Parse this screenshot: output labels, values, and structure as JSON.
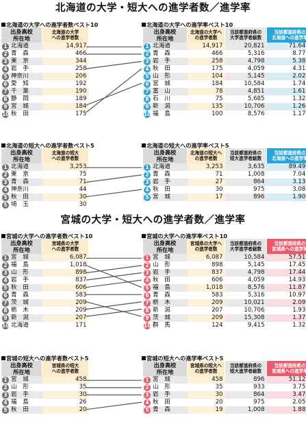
{
  "title1": "北海道の大学・短大への進学者数／進学率",
  "title2": "宮城の大学・短大への進学者数／進学率",
  "headers": {
    "src": "出身高校\n所在地",
    "hk_univ_cnt": "北海道の大学\nへの進学者数",
    "hk_jc_cnt": "北海道の短大\nへの進学者数",
    "hk_univ_cnt2": "北海道の大学へ\nの進学者数",
    "hk_jc_cnt2": "北海道の短大へ\nの進学者数",
    "univ_total": "当該都道府県の\n大学進学者総数",
    "jc_total": "当該都道府県の\n短大進学者総数",
    "hk_rate": "当該都道府県の\n北海道への進学率",
    "mg_univ_cnt": "宮城県の大学\nへの進学者数",
    "mg_jc_cnt": "宮城県の短大\nへの進学者数",
    "mg_univ_cnt2": "宮城県の大学へ\nの進学者数",
    "mg_jc_cnt2": "宮城県の短大へ\nの進学者数",
    "mg_rate": "当該都道府県の\n宮城県への進学率"
  },
  "hk_univ_count": {
    "label": "北海道の大学への進学者数ベスト10",
    "rows": [
      {
        "r": "1",
        "p": "北海道",
        "v": "14,917"
      },
      {
        "r": "2",
        "p": "青　森",
        "v": "466"
      },
      {
        "r": "3",
        "p": "東　京",
        "v": "344"
      },
      {
        "r": "4",
        "p": "岩　手",
        "v": "258"
      },
      {
        "r": "5",
        "p": "神奈川",
        "v": "206"
      },
      {
        "r": "6",
        "p": "愛　知",
        "v": "192"
      },
      {
        "r": "7",
        "p": "千　葉",
        "v": "190"
      },
      {
        "r": "8",
        "p": "静　岡",
        "v": "189"
      },
      {
        "r": "9",
        "p": "宮　城",
        "v": "184"
      },
      {
        "r": "10",
        "p": "秋　田",
        "v": "175"
      }
    ]
  },
  "hk_univ_rate": {
    "label": "北海道の大学への進学率ベスト10",
    "rows": [
      {
        "r": "1",
        "p": "北海道",
        "a": "14,917",
        "b": "20,821",
        "c": "71.64%"
      },
      {
        "r": "2",
        "p": "青　森",
        "a": "466",
        "b": "5,316",
        "c": "8.77%"
      },
      {
        "r": "3",
        "p": "岩　手",
        "a": "258",
        "b": "4,798",
        "c": "5.38%"
      },
      {
        "r": "4",
        "p": "秋　田",
        "a": "175",
        "b": "4,059",
        "c": "4.31%"
      },
      {
        "r": "5",
        "p": "山　形",
        "a": "104",
        "b": "5,145",
        "c": "2.02%"
      },
      {
        "r": "6",
        "p": "宮　城",
        "a": "184",
        "b": "10,584",
        "c": "1.74%"
      },
      {
        "r": "7",
        "p": "富　山",
        "a": "78",
        "b": "4,851",
        "c": "1.61%"
      },
      {
        "r": "8",
        "p": "石　川",
        "a": "75",
        "b": "5,685",
        "c": "1.32%"
      },
      {
        "r": "9",
        "p": "新　潟",
        "a": "135",
        "b": "10,706",
        "c": "1.26%"
      },
      {
        "r": "10",
        "p": "福　島",
        "a": "100",
        "b": "8,576",
        "c": "1.17%"
      }
    ]
  },
  "hk_jc_count": {
    "label": "北海道の短大への進学者数ベスト5",
    "rows": [
      {
        "r": "1",
        "p": "北海道",
        "v": "3,253"
      },
      {
        "r": "2",
        "p": "東　京",
        "v": "75"
      },
      {
        "r": "3",
        "p": "青　森",
        "v": "71"
      },
      {
        "r": "4",
        "p": "神奈川",
        "v": "44"
      },
      {
        "r": "5",
        "p": "秋　田",
        "v": "30"
      },
      {
        "r": "5",
        "p": "埼　玉",
        "v": "30"
      }
    ]
  },
  "hk_jc_rate": {
    "label": "北海道の短大への進学率ベスト5",
    "rows": [
      {
        "r": "1",
        "p": "北海道",
        "a": "3,253",
        "b": "3,635",
        "c": "89.49%"
      },
      {
        "r": "2",
        "p": "青　森",
        "a": "71",
        "b": "1,008",
        "c": "7.04%"
      },
      {
        "r": "3",
        "p": "岩　手",
        "a": "27",
        "b": "864",
        "c": "3.13%"
      },
      {
        "r": "4",
        "p": "秋　田",
        "a": "30",
        "b": "975",
        "c": "3.08%"
      },
      {
        "r": "5",
        "p": "宮　城",
        "a": "17",
        "b": "896",
        "c": "1.90%"
      }
    ]
  },
  "mg_univ_count": {
    "label": "宮城の大学への進学者数ベスト10",
    "rows": [
      {
        "r": "1",
        "p": "宮　城",
        "v": "6,087"
      },
      {
        "r": "2",
        "p": "福　島",
        "v": "1,018"
      },
      {
        "r": "3",
        "p": "山　形",
        "v": "898"
      },
      {
        "r": "4",
        "p": "岩　手",
        "v": "837"
      },
      {
        "r": "5",
        "p": "秋　田",
        "v": "606"
      },
      {
        "r": "6",
        "p": "青　森",
        "v": "583"
      },
      {
        "r": "7",
        "p": "茨　城",
        "v": "209"
      },
      {
        "r": "8",
        "p": "栃　木",
        "v": "209"
      },
      {
        "r": "9",
        "p": "新　潟",
        "v": "207"
      },
      {
        "r": "10",
        "p": "北海道",
        "v": "171"
      }
    ]
  },
  "mg_univ_rate": {
    "label": "宮城の大学への進学率ベスト10",
    "rows": [
      {
        "r": "1",
        "p": "宮　城",
        "a": "6,087",
        "b": "10,584",
        "c": "57.51%"
      },
      {
        "r": "2",
        "p": "山　形",
        "a": "898",
        "b": "5,145",
        "c": "17.45%"
      },
      {
        "r": "3",
        "p": "岩　手",
        "a": "837",
        "b": "4,798",
        "c": "17.44%"
      },
      {
        "r": "4",
        "p": "秋　田",
        "a": "606",
        "b": "4,059",
        "c": "14.93%"
      },
      {
        "r": "5",
        "p": "福　島",
        "a": "1,018",
        "b": "8,576",
        "c": "11.87%"
      },
      {
        "r": "6",
        "p": "青　森",
        "a": "583",
        "b": "5,316",
        "c": "10.97%"
      },
      {
        "r": "7",
        "p": "栃　木",
        "a": "209",
        "b": "10,021",
        "c": "2.09%"
      },
      {
        "r": "8",
        "p": "新　潟",
        "a": "207",
        "b": "10,706",
        "c": "1.93%"
      },
      {
        "r": "9",
        "p": "茨　城",
        "a": "209",
        "b": "15,308",
        "c": "1.37%"
      },
      {
        "r": "10",
        "p": "群　馬",
        "a": "124",
        "b": "9,415",
        "c": "1.32%"
      }
    ]
  },
  "mg_jc_count": {
    "label": "宮城の短大への進学者数ベスト5",
    "rows": [
      {
        "r": "1",
        "p": "宮　城",
        "v": "458"
      },
      {
        "r": "2",
        "p": "山　形",
        "v": "35"
      },
      {
        "r": "3",
        "p": "岩　手",
        "v": "30"
      },
      {
        "r": "4",
        "p": "福　島",
        "v": "26"
      },
      {
        "r": "5",
        "p": "秋　田",
        "v": "20"
      }
    ]
  },
  "mg_jc_rate": {
    "label": "宮城の短大への進学率ベスト5",
    "rows": [
      {
        "r": "1",
        "p": "宮　城",
        "a": "458",
        "b": "896",
        "c": "51.12%"
      },
      {
        "r": "2",
        "p": "山　形",
        "a": "35",
        "b": "933",
        "c": "3.75%"
      },
      {
        "r": "3",
        "p": "岩　手",
        "a": "30",
        "b": "864",
        "c": "3.47%"
      },
      {
        "r": "4",
        "p": "秋　田",
        "a": "20",
        "b": "975",
        "c": "2.05%"
      },
      {
        "r": "5",
        "p": "青　森",
        "a": "19",
        "b": "1,008",
        "c": "1.88%"
      }
    ]
  },
  "links": {
    "hk_univ": [
      [
        1,
        1
      ],
      [
        2,
        2
      ],
      [
        4,
        3
      ],
      [
        10,
        4
      ],
      [
        9,
        6
      ]
    ],
    "hk_jc": [
      [
        1,
        1
      ],
      [
        3,
        2
      ],
      [
        5,
        4
      ]
    ],
    "mg_univ": [
      [
        1,
        1
      ],
      [
        2,
        5
      ],
      [
        3,
        2
      ],
      [
        4,
        3
      ],
      [
        5,
        4
      ],
      [
        6,
        6
      ],
      [
        7,
        9
      ],
      [
        8,
        7
      ],
      [
        9,
        8
      ]
    ],
    "mg_jc": [
      [
        1,
        1
      ],
      [
        2,
        2
      ],
      [
        3,
        3
      ],
      [
        5,
        4
      ]
    ]
  }
}
